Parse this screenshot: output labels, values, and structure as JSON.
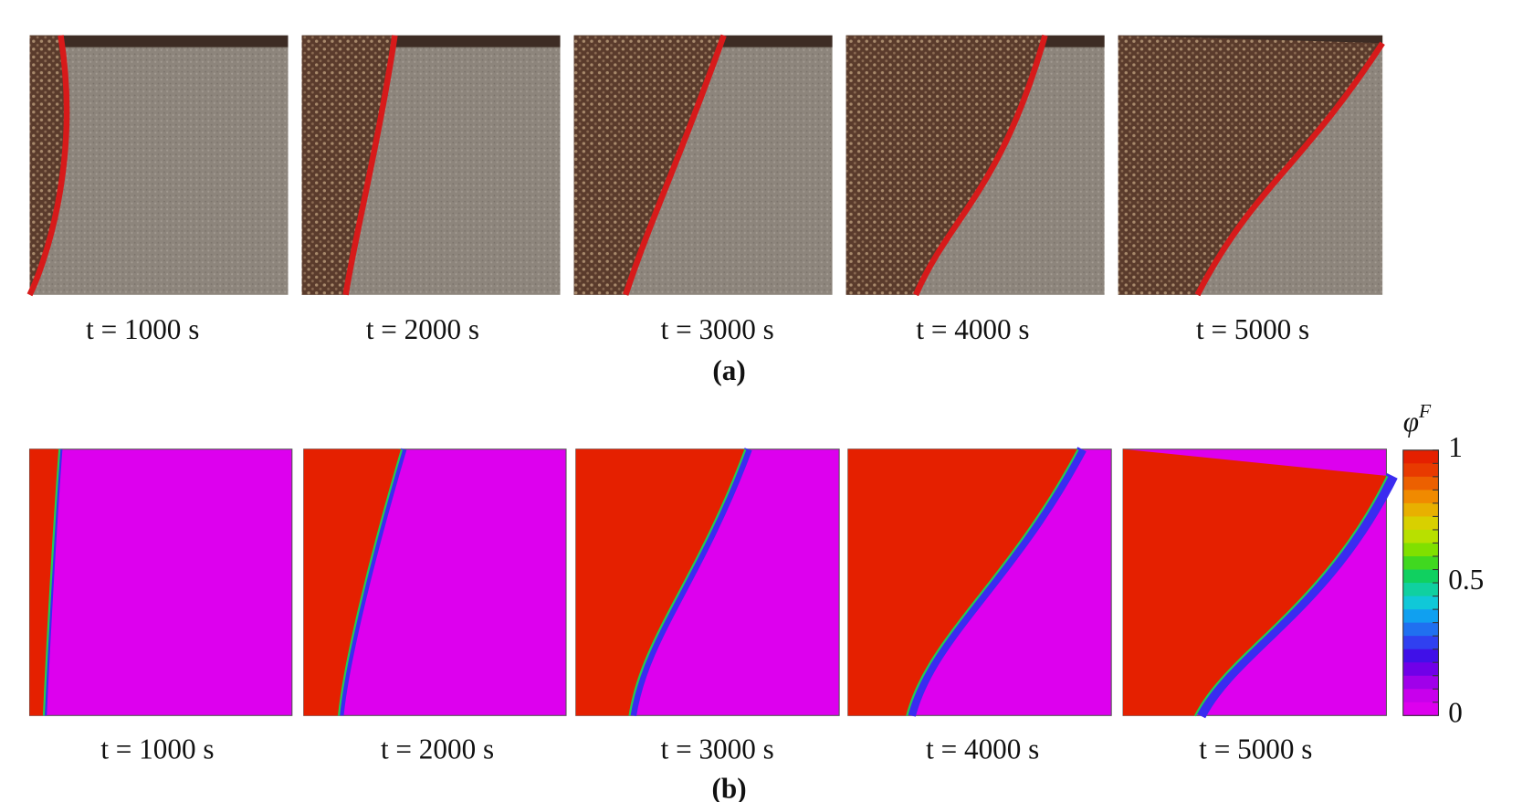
{
  "figure_a": {
    "labels": [
      "t = 1000 s",
      "t = 2000 s",
      "t = 3000 s",
      "t = 4000 s",
      "t = 5000 s"
    ],
    "caption": "(a)"
  },
  "figure_b": {
    "labels": [
      "t = 1000 s",
      "t = 2000 s",
      "t = 3000 s",
      "t = 4000 s",
      "t = 5000 s"
    ],
    "caption": "(b)"
  },
  "colorbar": {
    "symbol": "φ",
    "superscript": "F",
    "ticks": [
      "1",
      "0.5",
      "0"
    ]
  }
}
